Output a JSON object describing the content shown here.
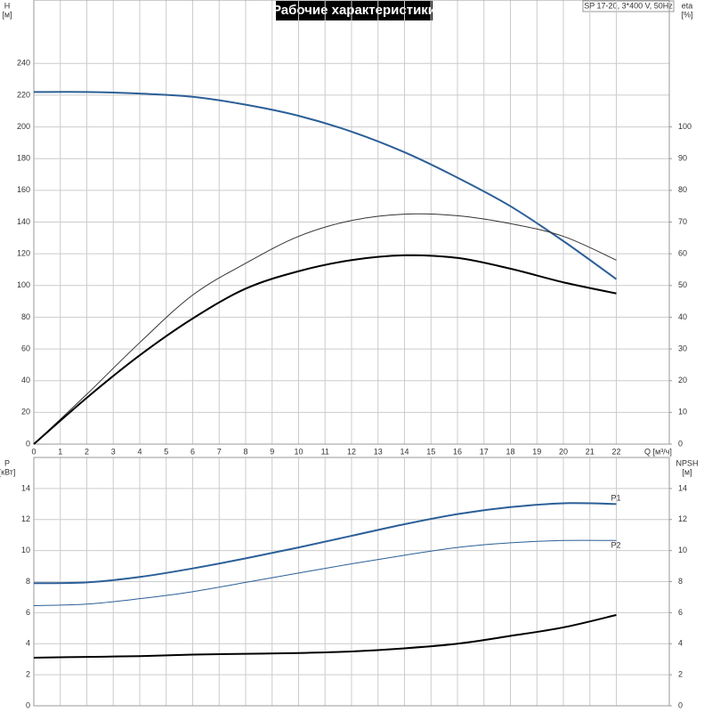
{
  "chart_data": [
    {
      "type": "line",
      "title": "Рабочие характеристики",
      "subtitle": "SP 17-20, 3*400 V, 50Hz",
      "y_label": "H",
      "y_unit": "[м]",
      "y2_label": "eta",
      "y2_unit": "[%]",
      "x_label": "Q [м³/ч]",
      "x": [
        0,
        2,
        4,
        6,
        8,
        10,
        12,
        14,
        16,
        18,
        20,
        22
      ],
      "xlim": [
        0,
        24
      ],
      "xticks": [
        0,
        1,
        2,
        3,
        4,
        5,
        6,
        7,
        8,
        9,
        10,
        11,
        12,
        13,
        14,
        15,
        16,
        17,
        18,
        19,
        20,
        21,
        22
      ],
      "ylim": [
        0,
        280
      ],
      "yticks": [
        0,
        20,
        40,
        60,
        80,
        100,
        120,
        140,
        160,
        180,
        200,
        220,
        240
      ],
      "y2lim": [
        0,
        140
      ],
      "y2ticks": [
        0,
        10,
        20,
        30,
        40,
        50,
        60,
        70,
        80,
        90,
        100
      ],
      "grid": true,
      "series": [
        {
          "color": "#2b5f97",
          "width": 2,
          "values": [
            222,
            222,
            221,
            219,
            214,
            207,
            197,
            184,
            168,
            150,
            128,
            104
          ]
        },
        {
          "color": "#333333",
          "width": 1,
          "axis": "y2",
          "values": [
            0,
            15.7,
            32,
            47,
            57,
            65.5,
            70.5,
            72.5,
            72,
            69.5,
            65.5,
            58
          ]
        },
        {
          "color": "#000000",
          "width": 2,
          "axis": "y2",
          "values": [
            0,
            14.6,
            28,
            39.6,
            49,
            54.5,
            58,
            59.5,
            58.7,
            55.3,
            51,
            47.5
          ]
        }
      ]
    },
    {
      "type": "line",
      "y_label": "P",
      "y_unit": "[кВт]",
      "y2_label": "NPSH",
      "y2_unit": "[м]",
      "x": [
        0,
        2,
        4,
        6,
        8,
        10,
        12,
        14,
        16,
        18,
        20,
        22
      ],
      "xlim": [
        0,
        24
      ],
      "ylim": [
        0,
        16
      ],
      "yticks": [
        0,
        2,
        4,
        6,
        8,
        10,
        12,
        14
      ],
      "y2lim": [
        0,
        16
      ],
      "y2ticks": [
        0,
        2,
        4,
        6,
        8,
        10,
        12,
        14
      ],
      "grid": true,
      "series": [
        {
          "name": "P1",
          "color": "#2b5f97",
          "width": 2,
          "values": [
            7.9,
            7.95,
            8.3,
            8.85,
            9.5,
            10.2,
            10.95,
            11.7,
            12.35,
            12.8,
            13.05,
            13.0
          ]
        },
        {
          "name": "P2",
          "color": "#2b5f97",
          "width": 1,
          "values": [
            6.45,
            6.55,
            6.9,
            7.35,
            7.95,
            8.55,
            9.15,
            9.7,
            10.2,
            10.5,
            10.65,
            10.65
          ]
        },
        {
          "color": "#000000",
          "width": 2,
          "axis": "y2",
          "values": [
            3.1,
            3.15,
            3.2,
            3.3,
            3.35,
            3.4,
            3.5,
            3.7,
            4.0,
            4.5,
            5.05,
            5.85
          ]
        }
      ]
    }
  ]
}
